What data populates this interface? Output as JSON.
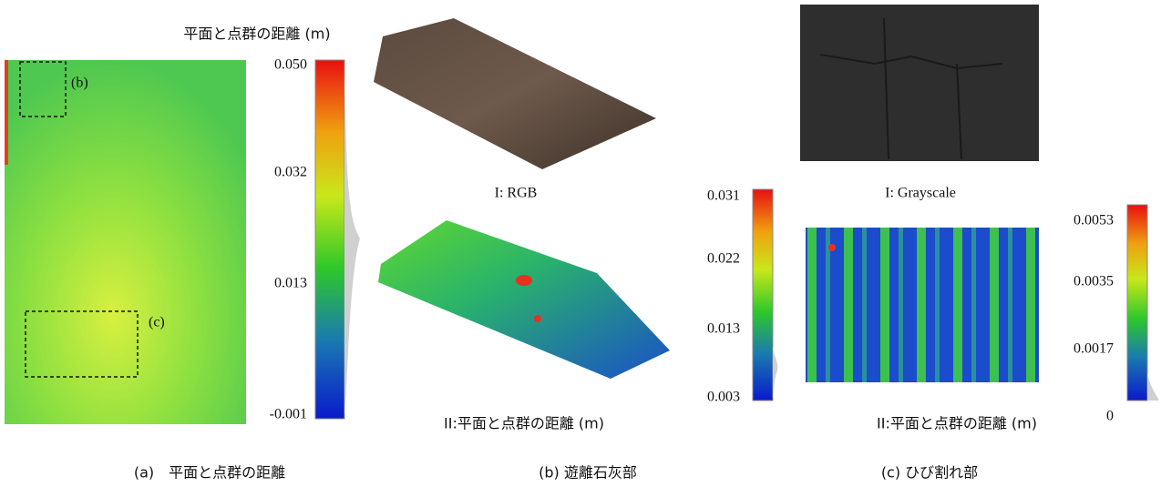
{
  "panel_a": {
    "title": "平面と点群の距離 (m)",
    "box_b": "(b)",
    "box_c": "(c)",
    "colorbar_ticks": [
      "0.050",
      "0.032",
      "0.013",
      "-0.001"
    ],
    "caption": "(a)　平面と点群の距離"
  },
  "panel_b": {
    "image_1_label": "I: RGB",
    "image_2_label": "II:平面と点群の距離 (m)",
    "colorbar_ticks": [
      "0.031",
      "0.022",
      "0.013",
      "0.003"
    ],
    "caption": "(b)  遊離石灰部"
  },
  "panel_c": {
    "image_1_label": "I: Grayscale",
    "image_2_label": "II:平面と点群の距離 (m)",
    "colorbar_ticks": [
      "0.0053",
      "0.0035",
      "0.0017",
      "0"
    ],
    "caption": "(c)  ひび割れ部"
  }
}
